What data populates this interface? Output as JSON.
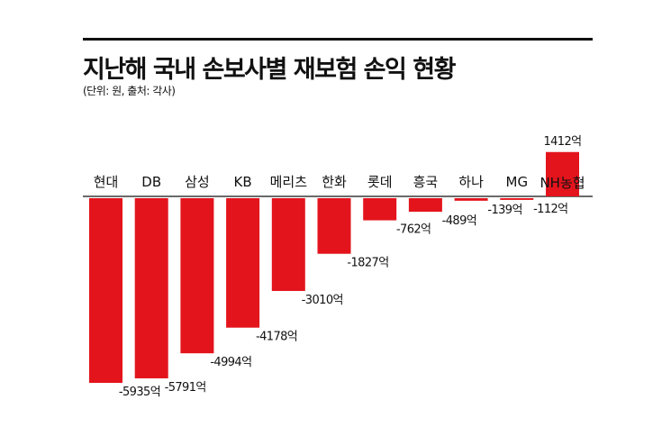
{
  "header": {
    "title": "지난해 국내 손보사별 재보험 손익 현황",
    "subtitle": "(단위: 원, 출처: 각사)"
  },
  "colors": {
    "bar": "#e3141c",
    "text": "#111111"
  },
  "chart_data": {
    "type": "bar",
    "title": "지난해 국내 손보사별 재보험 손익 현황",
    "subtitle": "(단위: 원, 출처: 각사)",
    "categories": [
      "현대",
      "DB",
      "삼성",
      "KB",
      "메리츠",
      "한화",
      "롯데",
      "흥국",
      "하나",
      "MG",
      "NH농협"
    ],
    "values": [
      -5935,
      -5791,
      -4994,
      -4178,
      -3010,
      -1827,
      -762,
      -489,
      -139,
      -112,
      1412
    ],
    "labels": [
      "-5935억",
      "-5791억",
      "-4994억",
      "-4178억",
      "-3010억",
      "-1827억",
      "-762억",
      "-489억",
      "-139억",
      "-112억",
      "1412억"
    ],
    "ylim": [
      -5935,
      1412
    ],
    "grid": false,
    "legend": "none"
  }
}
